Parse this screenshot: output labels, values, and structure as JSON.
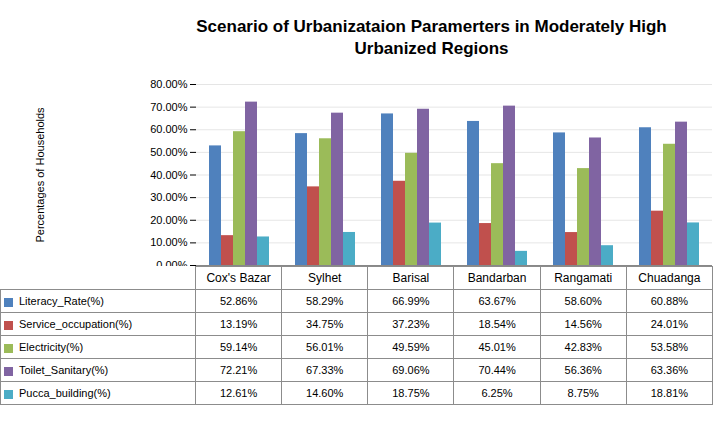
{
  "chart_data": {
    "type": "bar",
    "title": "Scenario of Urbanizataion Paramerters in Moderately High Urbanized Regions",
    "y_label": "Percentages of Households",
    "categories": [
      "Cox's Bazar",
      "Sylhet",
      "Barisal",
      "Bandarban",
      "Rangamati",
      "Chuadanga"
    ],
    "series": [
      {
        "name": "Literacy_Rate(%)",
        "color": "#4f81bd",
        "values": [
          52.86,
          58.29,
          66.99,
          63.67,
          58.6,
          60.88
        ],
        "value_labels": [
          "52.86%",
          "58.29%",
          "66.99%",
          "63.67%",
          "58.60%",
          "60.88%"
        ]
      },
      {
        "name": "Service_occupation(%)",
        "color": "#c0504d",
        "values": [
          13.19,
          34.75,
          37.23,
          18.54,
          14.56,
          24.01
        ],
        "value_labels": [
          "13.19%",
          "34.75%",
          "37.23%",
          "18.54%",
          "14.56%",
          "24.01%"
        ]
      },
      {
        "name": "Electricity(%)",
        "color": "#9bbb59",
        "values": [
          59.14,
          56.01,
          49.59,
          45.01,
          42.83,
          53.58
        ],
        "value_labels": [
          "59.14%",
          "56.01%",
          "49.59%",
          "45.01%",
          "42.83%",
          "53.58%"
        ]
      },
      {
        "name": "Toilet_Sanitary(%)",
        "color": "#8064a2",
        "values": [
          72.21,
          67.33,
          69.06,
          70.44,
          56.36,
          63.36
        ],
        "value_labels": [
          "72.21%",
          "67.33%",
          "69.06%",
          "70.44%",
          "56.36%",
          "63.36%"
        ]
      },
      {
        "name": "Pucca_building(%)",
        "color": "#4bacc6",
        "values": [
          12.61,
          14.6,
          18.75,
          6.25,
          8.75,
          18.81
        ],
        "value_labels": [
          "12.61%",
          "14.60%",
          "18.75%",
          "6.25%",
          "8.75%",
          "18.81%"
        ]
      }
    ],
    "ylim": [
      0,
      80
    ],
    "yticks": [
      {
        "value": 0,
        "label": "0.00%"
      },
      {
        "value": 10,
        "label": "10.00%"
      },
      {
        "value": 20,
        "label": "20.00%"
      },
      {
        "value": 30,
        "label": "30.00%"
      },
      {
        "value": 40,
        "label": "40.00%"
      },
      {
        "value": 50,
        "label": "50.00%"
      },
      {
        "value": 60,
        "label": "60.00%"
      },
      {
        "value": 70,
        "label": "70.00%"
      },
      {
        "value": 80,
        "label": "80.00%"
      }
    ],
    "grid": true,
    "legend": "bottom"
  }
}
